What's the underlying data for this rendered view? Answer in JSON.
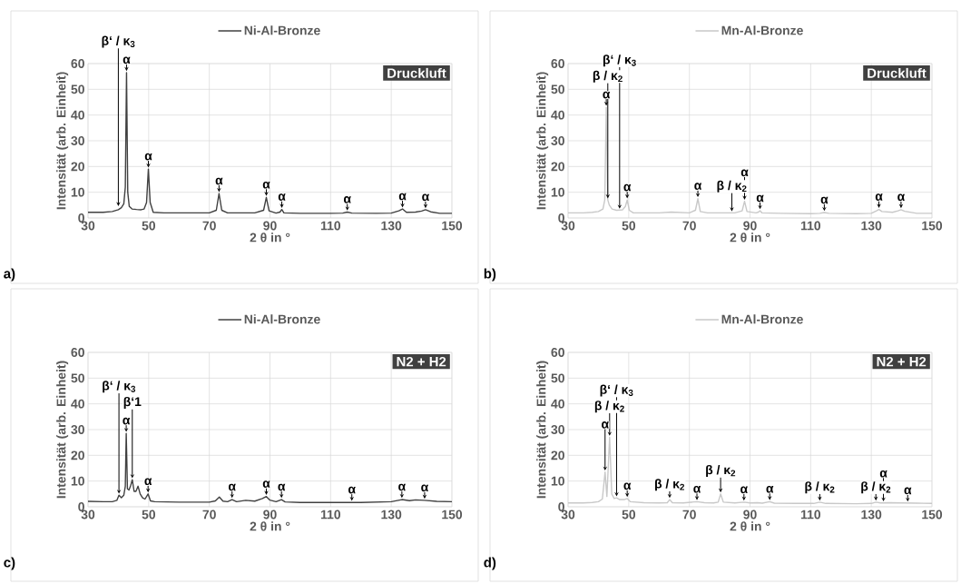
{
  "chart_data": [
    {
      "type": "line",
      "xlabel": "2 θ in °",
      "ylabel": "Intensität (arb. Einheit)",
      "xlim": [
        30,
        150
      ],
      "ylim": [
        0,
        60
      ],
      "xticks": [
        30,
        50,
        70,
        90,
        110,
        130,
        150
      ],
      "yticks": [
        0,
        10,
        20,
        30,
        40,
        50,
        60
      ],
      "grid": true,
      "legend": "top",
      "series": [
        {
          "name": "Ni-Al-Bronze",
          "color": "#404040",
          "x": [
            30,
            35,
            38,
            40,
            41,
            41.8,
            42.3,
            42.7,
            43.1,
            43.6,
            44.5,
            46,
            47.5,
            48.5,
            49.3,
            49.9,
            50.5,
            51.5,
            55,
            60,
            65,
            70,
            72.3,
            73.2,
            74.1,
            76,
            80,
            85,
            87.9,
            88.8,
            89.7,
            92,
            93.3,
            93.9,
            94.6,
            100,
            110,
            114,
            115.5,
            117,
            125,
            130,
            132.5,
            133.7,
            135,
            138,
            140,
            141.3,
            143,
            146,
            150
          ],
          "values": [
            2.2,
            2.2,
            2.5,
            3.2,
            4.0,
            5.5,
            12,
            56.5,
            10,
            4.5,
            3.5,
            3.3,
            3.2,
            3.5,
            6,
            19,
            6,
            2.2,
            2.0,
            2.0,
            2.0,
            2.0,
            3,
            9.5,
            3,
            2.0,
            2.0,
            2.0,
            3,
            8,
            2.8,
            1.9,
            2.3,
            3.3,
            2.0,
            1.8,
            1.8,
            1.9,
            2.3,
            1.9,
            1.8,
            1.9,
            2.8,
            3.5,
            2.2,
            2.3,
            2.7,
            3.2,
            2.4,
            1.8,
            1.8
          ]
        }
      ],
      "annotations": [
        "Druckluft",
        "a)",
        {
          "text": "α",
          "x": 42.7,
          "y": 56.5
        },
        {
          "text": "β‘ / κ$_{3}$",
          "x": 40,
          "y": 4
        },
        {
          "text": "α",
          "x": 49.9,
          "y": 19
        },
        {
          "text": "α",
          "x": 73.2,
          "y": 9.5
        },
        {
          "text": "α",
          "x": 88.8,
          "y": 8
        },
        {
          "text": "α",
          "x": 93.9,
          "y": 3.3
        },
        {
          "text": "α",
          "x": 115.5,
          "y": 2.3
        },
        {
          "text": "α",
          "x": 133.7,
          "y": 3.5
        },
        {
          "text": "α",
          "x": 141.3,
          "y": 3.2
        }
      ]
    },
    {
      "type": "line",
      "xlabel": "2 θ in °",
      "ylabel": "Intensität (arb. Einheit)",
      "xlim": [
        30,
        150
      ],
      "ylim": [
        0,
        60
      ],
      "xticks": [
        30,
        50,
        70,
        90,
        110,
        130,
        150
      ],
      "yticks": [
        0,
        10,
        20,
        30,
        40,
        50,
        60
      ],
      "grid": true,
      "legend": "top",
      "series": [
        {
          "name": "Mn-Al-Bronze",
          "color": "#c8c8c8",
          "x": [
            30,
            35,
            38,
            40,
            41.5,
            42.1,
            42.6,
            43.1,
            43.6,
            44.5,
            46,
            48,
            48.9,
            49.5,
            50.2,
            51.5,
            55,
            60,
            64,
            70,
            72,
            72.8,
            73.6,
            76,
            80,
            85,
            87.4,
            88.2,
            89,
            92,
            92.8,
            93.3,
            93.9,
            100,
            110,
            113,
            114.5,
            116,
            125,
            130,
            131.7,
            132.5,
            133.5,
            137,
            138.8,
            139.8,
            141,
            145,
            150
          ],
          "values": [
            2,
            2,
            2.2,
            2.5,
            3.5,
            7,
            43,
            7,
            5,
            3.5,
            3,
            3.2,
            4.5,
            7,
            3,
            2,
            2,
            2,
            2.3,
            2,
            3,
            7.5,
            2.5,
            2,
            2,
            2,
            2.8,
            6.5,
            2.5,
            2,
            2.3,
            2.8,
            2,
            1.8,
            1.7,
            1.8,
            2.1,
            1.8,
            1.7,
            1.8,
            2.8,
            3.3,
            2.5,
            2.2,
            2.8,
            3.2,
            2.6,
            1.8,
            1.8
          ]
        }
      ],
      "annotations": [
        "Druckluft",
        "b)",
        {
          "text": "α",
          "x": 42.6,
          "y": 43
        },
        {
          "text": "β / κ$_{2}$",
          "x": 43.1,
          "y": 7
        },
        {
          "text": "α",
          "x": 49.5,
          "y": 7
        },
        {
          "text": "β‘ / κ$_{3}$",
          "x": 47,
          "y": 3
        },
        {
          "text": "α",
          "x": 72.8,
          "y": 7.5
        },
        {
          "text": "β / κ$_{2}$",
          "x": 84,
          "y": 2
        },
        {
          "text": "α",
          "x": 88.2,
          "y": 6.5
        },
        {
          "text": "α",
          "x": 93.3,
          "y": 2.8
        },
        {
          "text": "α",
          "x": 114.5,
          "y": 2.1
        },
        {
          "text": "α",
          "x": 132.5,
          "y": 3.3
        },
        {
          "text": "α",
          "x": 139.8,
          "y": 3.2
        }
      ]
    },
    {
      "type": "line",
      "xlabel": "2 θ in °",
      "ylabel": "Intensität (arb. Einheit)",
      "xlim": [
        30,
        150
      ],
      "ylim": [
        0,
        60
      ],
      "xticks": [
        30,
        50,
        70,
        90,
        110,
        130,
        150
      ],
      "yticks": [
        0,
        10,
        20,
        30,
        40,
        50,
        60
      ],
      "grid": true,
      "legend": "top",
      "series": [
        {
          "name": "Ni-Al-Bronze",
          "color": "#404040",
          "x": [
            30,
            35,
            38,
            39.5,
            40.2,
            41,
            41.8,
            42.3,
            42.6,
            43,
            43.5,
            44,
            44.6,
            45.2,
            45.8,
            46.5,
            47.2,
            48,
            48.8,
            49.8,
            50.6,
            52,
            60,
            70,
            72,
            73.3,
            74.5,
            76,
            77.5,
            79,
            82,
            85,
            87.5,
            88.8,
            90,
            92,
            93.8,
            95,
            100,
            110,
            120,
            130,
            133.5,
            136,
            138,
            141,
            145,
            150
          ],
          "values": [
            2.1,
            2.0,
            2.0,
            2.5,
            4.5,
            3.5,
            4.5,
            8,
            28.5,
            7,
            6.5,
            8,
            10.5,
            6,
            6,
            8,
            5,
            3.5,
            3,
            5,
            2.3,
            2,
            1.8,
            1.8,
            2.3,
            3.8,
            2.2,
            2,
            2.8,
            2,
            2.5,
            2.2,
            3.2,
            4,
            2.6,
            2,
            2.8,
            1.9,
            1.7,
            1.7,
            1.7,
            2,
            2.8,
            2.4,
            2.7,
            2.5,
            2.1,
            2.0
          ]
        }
      ],
      "annotations": [
        "N2 + H2",
        "c)",
        {
          "text": "α",
          "x": 42.6,
          "y": 28.5
        },
        {
          "text": "β‘1",
          "x": 44.6,
          "y": 10.5
        },
        {
          "text": "β‘ / κ$_{3}$",
          "x": 40.2,
          "y": 4.5
        },
        {
          "text": "α",
          "x": 49.8,
          "y": 5
        },
        {
          "text": "α",
          "x": 77.5,
          "y": 2.8
        },
        {
          "text": "α",
          "x": 88.8,
          "y": 4
        },
        {
          "text": "α",
          "x": 93.8,
          "y": 2.8
        },
        {
          "text": "α",
          "x": 117,
          "y": 1.7
        },
        {
          "text": "α",
          "x": 133.5,
          "y": 2.8
        },
        {
          "text": "α",
          "x": 141,
          "y": 2.5
        }
      ]
    },
    {
      "type": "line",
      "xlabel": "2 θ in °",
      "ylabel": "Intensität (arb. Einheit)",
      "xlim": [
        30,
        150
      ],
      "ylim": [
        0,
        60
      ],
      "xticks": [
        30,
        50,
        70,
        90,
        110,
        130,
        150
      ],
      "yticks": [
        0,
        10,
        20,
        30,
        40,
        50,
        60
      ],
      "grid": true,
      "legend": "top",
      "series": [
        {
          "name": "Mn-Al-Bronze",
          "color": "#c8c8c8",
          "x": [
            30,
            35,
            38,
            40,
            41.3,
            42.2,
            42.8,
            43.7,
            44.4,
            45.2,
            46,
            47,
            48.5,
            49.5,
            50.5,
            55,
            60,
            62.7,
            63.5,
            64.4,
            68,
            72.5,
            75,
            78,
            79.5,
            80.3,
            81.2,
            85,
            88,
            90,
            92.5,
            94,
            96.5,
            98,
            105,
            111,
            113,
            115,
            125,
            130,
            131.5,
            133,
            136,
            140,
            145,
            150
          ],
          "values": [
            1.5,
            1.5,
            1.7,
            2,
            3,
            13.5,
            4,
            27,
            5,
            3.2,
            3.5,
            2.8,
            2.8,
            3.2,
            2,
            1.6,
            1.5,
            1.6,
            2.8,
            1.6,
            1.5,
            2,
            1.6,
            1.5,
            1.8,
            5,
            1.8,
            1.5,
            1.8,
            1.5,
            1.6,
            1.4,
            2,
            1.4,
            1.3,
            1.3,
            1.8,
            1.3,
            1.2,
            1.3,
            1.8,
            1.5,
            1.6,
            1.5,
            1.4,
            1.3
          ]
        }
      ],
      "annotations": [
        "N2 + H2",
        "d)",
        {
          "text": "α",
          "x": 42.2,
          "y": 13.5
        },
        {
          "text": "β / κ$_{2}$",
          "x": 43.7,
          "y": 27
        },
        {
          "text": "β‘ / κ$_{3}$",
          "x": 46,
          "y": 3.5
        },
        {
          "text": "α",
          "x": 49.5,
          "y": 3.2
        },
        {
          "text": "β / κ$_{2}$",
          "x": 63.5,
          "y": 2.8
        },
        {
          "text": "α",
          "x": 72.5,
          "y": 2
        },
        {
          "text": "β / κ$_{2}$",
          "x": 80.3,
          "y": 5
        },
        {
          "text": "α",
          "x": 88,
          "y": 1.8
        },
        {
          "text": "α",
          "x": 96.5,
          "y": 2
        },
        {
          "text": "β / κ$_{2}$",
          "x": 113,
          "y": 1.8
        },
        {
          "text": "β / κ$_{2}$",
          "x": 131.5,
          "y": 1.8
        },
        {
          "text": "α",
          "x": 134,
          "y": 1.5
        },
        {
          "text": "α",
          "x": 142,
          "y": 1.4
        }
      ]
    }
  ]
}
